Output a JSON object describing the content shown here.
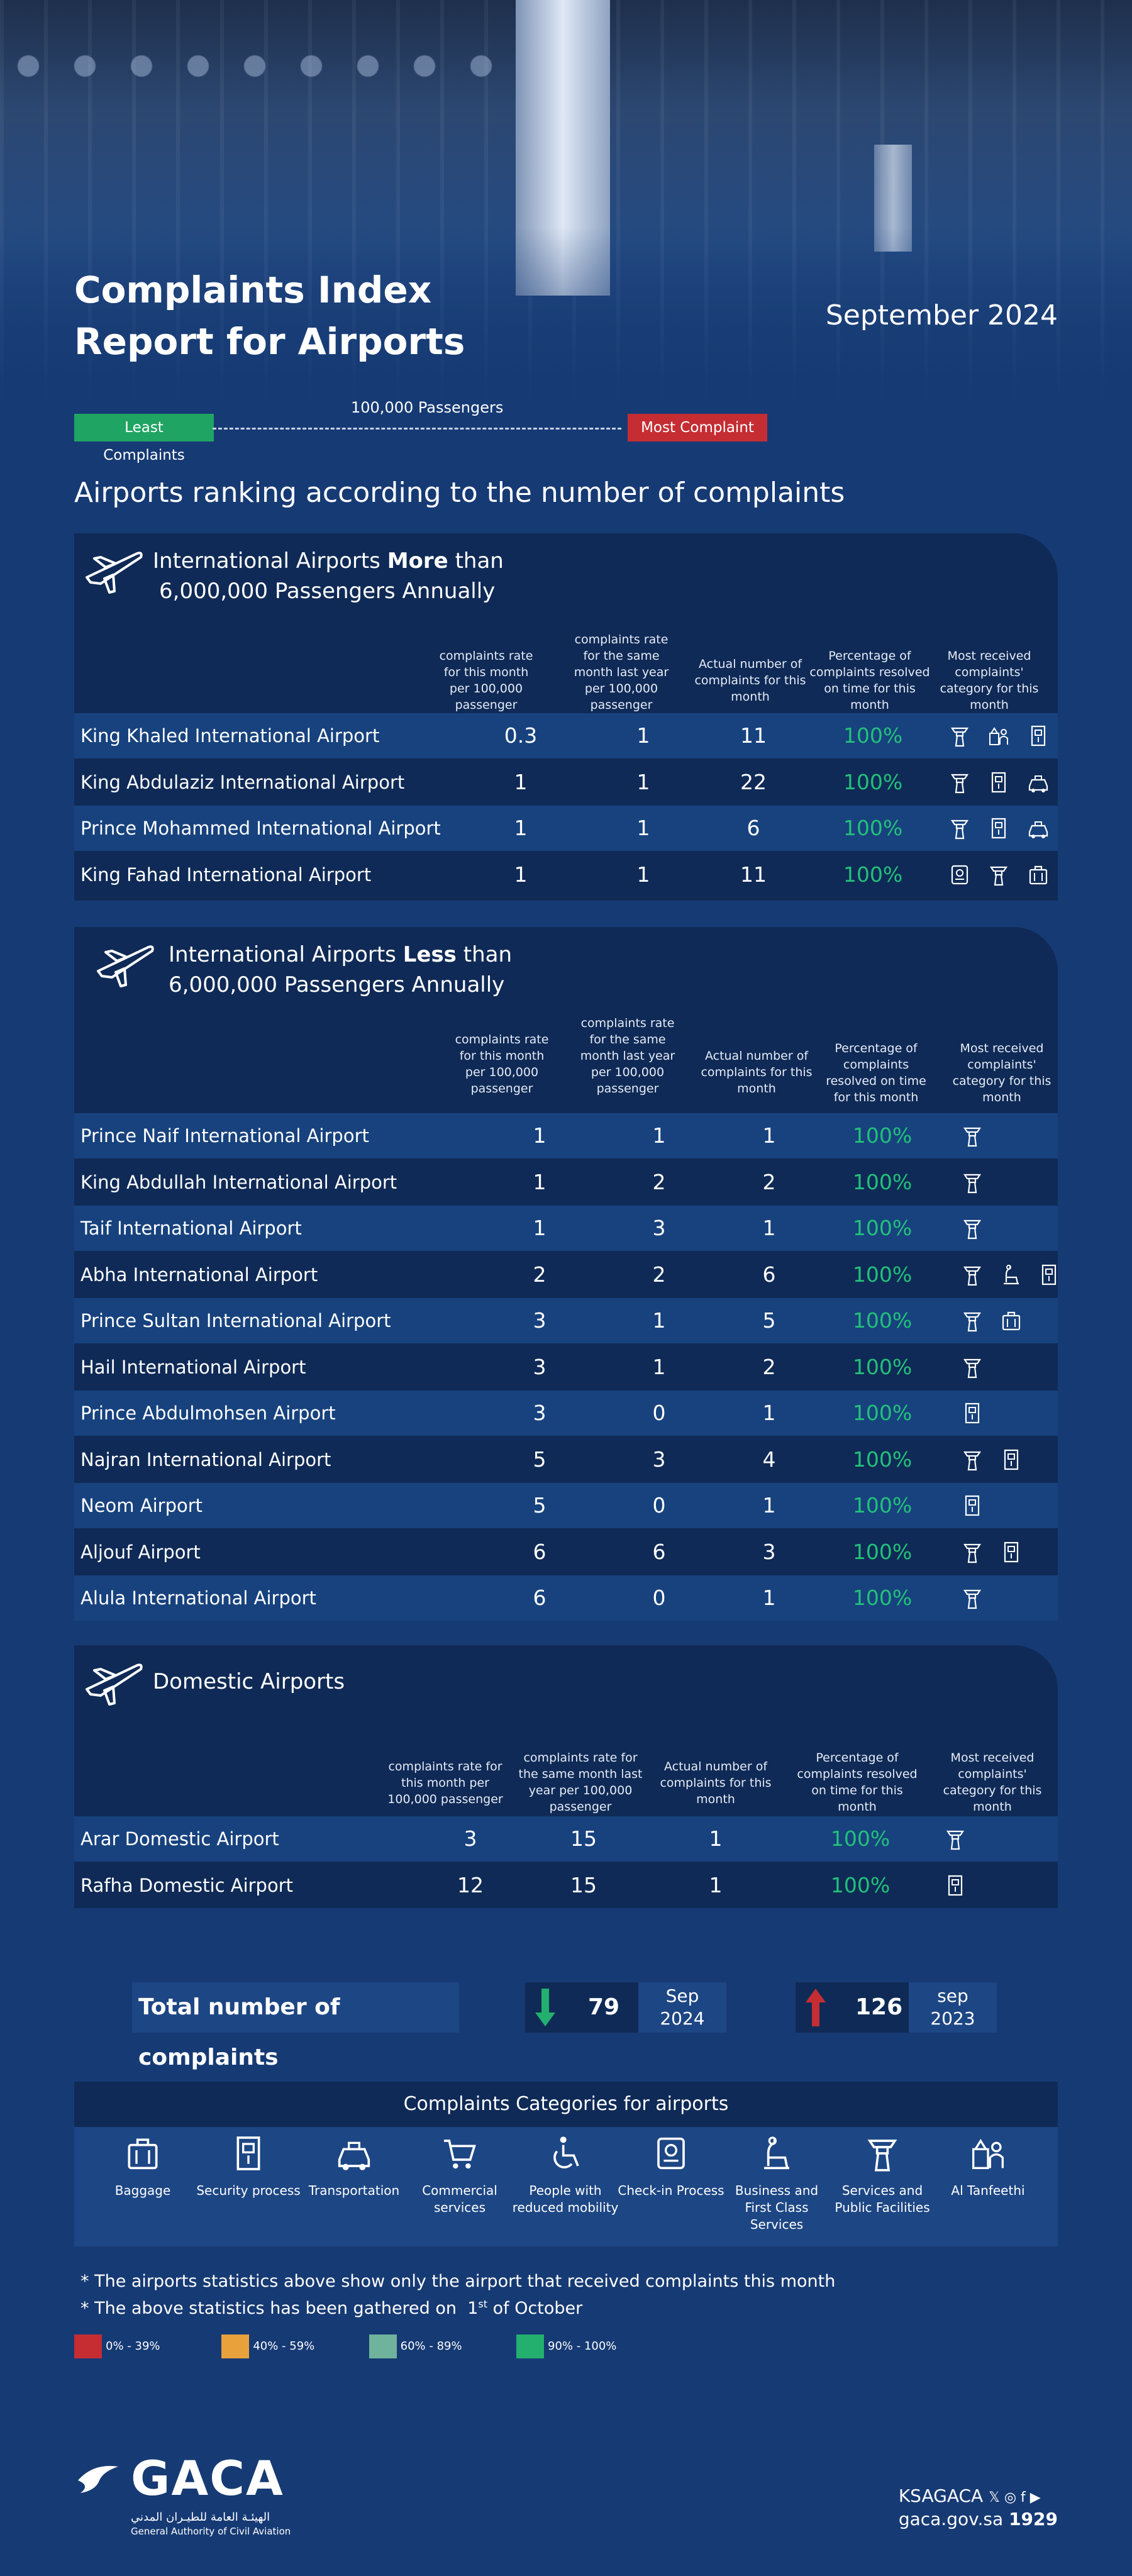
{
  "header": {
    "title_line1": "Complaints Index",
    "title_line2": "Report for Airports",
    "date": "September 2024"
  },
  "legend": {
    "least": "Least Complaints",
    "most": "Most Complaint",
    "per": "100,000 Passengers"
  },
  "ranking_title": "Airports ranking according to the number of complaints",
  "columns": {
    "rate": "complaints rate for this month per 100,000 passenger",
    "rate_last": "complaints rate for the same month last year per 100,000 passenger",
    "actual": "Actual number of complaints for this month",
    "pct": "Percentage of complaints resolved on time for this month",
    "cat": "Most received complaints' category for this month"
  },
  "sections": [
    {
      "title_pre": "International Airports",
      "title_bold": "More",
      "title_post": "than",
      "title_line2": "6,000,000 Passengers Annually",
      "rows": [
        {
          "name": "King Khaled International Airport",
          "rate": "0.3",
          "rate_last": "1",
          "actual": "11",
          "pct": "100%",
          "icons": [
            "services-icon",
            "al-tanfeethi-icon",
            "security-icon"
          ]
        },
        {
          "name": "King Abdulaziz International Airport",
          "rate": "1",
          "rate_last": "1",
          "actual": "22",
          "pct": "100%",
          "icons": [
            "services-icon",
            "security-icon",
            "transportation-icon"
          ]
        },
        {
          "name": "Prince Mohammed International Airport",
          "rate": "1",
          "rate_last": "1",
          "actual": "6",
          "pct": "100%",
          "icons": [
            "services-icon",
            "security-icon",
            "transportation-icon"
          ]
        },
        {
          "name": "King Fahad International Airport",
          "rate": "1",
          "rate_last": "1",
          "actual": "11",
          "pct": "100%",
          "icons": [
            "check-in-icon",
            "services-icon",
            "baggage-icon"
          ]
        }
      ]
    },
    {
      "title_pre": "International Airports",
      "title_bold": "Less",
      "title_post": "than",
      "title_line2": "6,000,000 Passengers Annually",
      "rows": [
        {
          "name": "Prince Naif International Airport",
          "rate": "1",
          "rate_last": "1",
          "actual": "1",
          "pct": "100%",
          "icons": [
            "services-icon"
          ]
        },
        {
          "name": "King Abdullah International Airport",
          "rate": "1",
          "rate_last": "2",
          "actual": "2",
          "pct": "100%",
          "icons": [
            "services-icon"
          ]
        },
        {
          "name": "Taif International Airport",
          "rate": "1",
          "rate_last": "3",
          "actual": "1",
          "pct": "100%",
          "icons": [
            "services-icon"
          ]
        },
        {
          "name": "Abha International Airport",
          "rate": "2",
          "rate_last": "2",
          "actual": "6",
          "pct": "100%",
          "icons": [
            "services-icon",
            "business-icon",
            "security-icon"
          ]
        },
        {
          "name": "Prince Sultan International Airport",
          "rate": "3",
          "rate_last": "1",
          "actual": "5",
          "pct": "100%",
          "icons": [
            "services-icon",
            "baggage-icon"
          ]
        },
        {
          "name": "Hail International Airport",
          "rate": "3",
          "rate_last": "1",
          "actual": "2",
          "pct": "100%",
          "icons": [
            "services-icon"
          ]
        },
        {
          "name": "Prince Abdulmohsen Airport",
          "rate": "3",
          "rate_last": "0",
          "actual": "1",
          "pct": "100%",
          "icons": [
            "security-icon"
          ]
        },
        {
          "name": "Najran International Airport",
          "rate": "5",
          "rate_last": "3",
          "actual": "4",
          "pct": "100%",
          "icons": [
            "services-icon",
            "security-icon"
          ]
        },
        {
          "name": "Neom Airport",
          "rate": "5",
          "rate_last": "0",
          "actual": "1",
          "pct": "100%",
          "icons": [
            "security-icon"
          ]
        },
        {
          "name": "Aljouf Airport",
          "rate": "6",
          "rate_last": "6",
          "actual": "3",
          "pct": "100%",
          "icons": [
            "services-icon",
            "security-icon"
          ]
        },
        {
          "name": "Alula International Airport",
          "rate": "6",
          "rate_last": "0",
          "actual": "1",
          "pct": "100%",
          "icons": [
            "services-icon"
          ]
        }
      ]
    },
    {
      "title_pre": "Domestic Airports",
      "rows": [
        {
          "name": "Arar Domestic Airport",
          "rate": "3",
          "rate_last": "15",
          "actual": "1",
          "pct": "100%",
          "icons": [
            "services-icon"
          ]
        },
        {
          "name": "Rafha Domestic Airport",
          "rate": "12",
          "rate_last": "15",
          "actual": "1",
          "pct": "100%",
          "icons": [
            "security-icon"
          ]
        }
      ]
    }
  ],
  "totals": {
    "label": "Total number of complaints",
    "current_value": "79",
    "current_month": "Sep",
    "current_year": "2024",
    "previous_value": "126",
    "previous_month": "sep",
    "previous_year": "2023"
  },
  "categories_title": "Complaints Categories for airports",
  "categories": [
    {
      "label": "Baggage",
      "icon": "baggage-icon"
    },
    {
      "label": "Security process",
      "icon": "security-icon"
    },
    {
      "label": "Transportation",
      "icon": "transportation-icon"
    },
    {
      "label": "Commercial services",
      "icon": "cart-icon"
    },
    {
      "label": "People with reduced mobility",
      "icon": "wheelchair-icon"
    },
    {
      "label": "Check-in Process",
      "icon": "check-in-icon"
    },
    {
      "label": "Business and First Class Services",
      "icon": "business-icon"
    },
    {
      "label": "Services and Public Facilities",
      "icon": "services-icon"
    },
    {
      "label": "Al Tanfeethi",
      "icon": "al-tanfeethi-icon"
    }
  ],
  "notes": {
    "n1": "* The airports statistics above show only the airport that received complaints this month",
    "n2_pre": "* The above statistics has been gathered on",
    "n2_day": "1",
    "n2_sup": "st",
    "n2_post": "of October"
  },
  "scale": [
    {
      "label": "0% - 39%",
      "color": "#c52d33"
    },
    {
      "label": "40% - 59%",
      "color": "#e9a23b"
    },
    {
      "label": "60% - 89%",
      "color": "#6fb39d"
    },
    {
      "label": "90% - 100%",
      "color": "#23b06e"
    }
  ],
  "colors": {
    "accent_green": "#23c07a",
    "panel": "#0f2a56",
    "row_alt": "#17427e"
  },
  "footer": {
    "logo": "GACA",
    "arabic": "الهيئـة العامة للطيـران المدني",
    "english": "General Authority of Civil Aviation",
    "handle": "KSAGACA",
    "site": "gaca.gov.sa",
    "phone": "1929"
  }
}
